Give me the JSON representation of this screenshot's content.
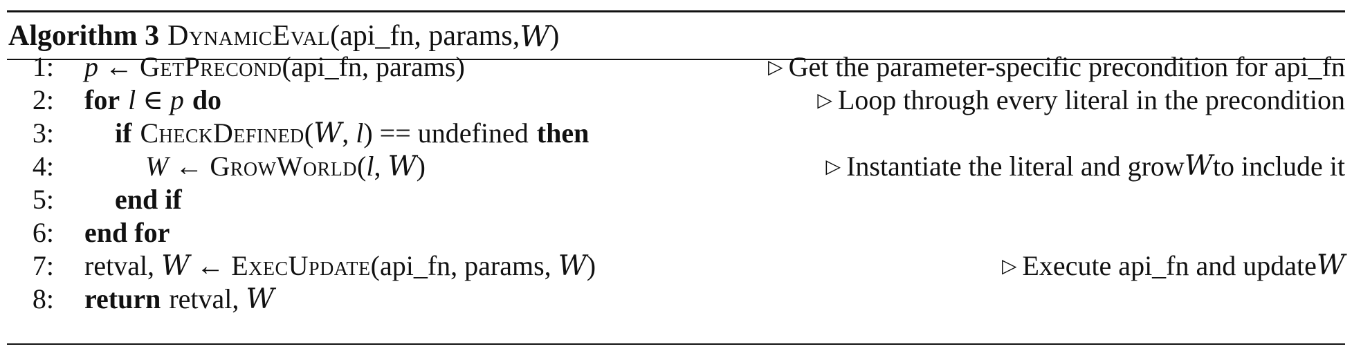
{
  "caption": {
    "label": "Algorithm 3",
    "name": "DynamicEval",
    "args_open": "(api_fn, params, ",
    "args_world": "W",
    "args_close": ")"
  },
  "lines": [
    {
      "num": "1:",
      "p": "p",
      "arrow": " ← ",
      "fn": "GetPrecond",
      "args": "(api_fn, params)",
      "comment": "Get the parameter-specific precondition for api_fn"
    },
    {
      "num": "2:",
      "kw_for": "for",
      "var": "l",
      "in": " ∈ ",
      "p": "p",
      "kw_do": "do",
      "comment": "Loop through every literal in the precondition"
    },
    {
      "num": "3:",
      "kw_if": "if",
      "fn": "CheckDefined",
      "open": "(",
      "world": "W",
      "comma": ", ",
      "var": "l",
      "rest": ") == undefined",
      "kw_then": "then"
    },
    {
      "num": "4:",
      "W": "W",
      "arrow": " ← ",
      "fn": "GrowWorld",
      "open": "(",
      "var": "l",
      "comma": ", ",
      "world": "W",
      "close": ")",
      "comment_pre": "Instantiate the literal and grow ",
      "comment_world": "W",
      "comment_post": " to include it"
    },
    {
      "num": "5:",
      "kw": "end if"
    },
    {
      "num": "6:",
      "kw": "end for"
    },
    {
      "num": "7:",
      "retval": "retval, ",
      "world": "W",
      "arrow": " ← ",
      "fn": "ExecUpdate",
      "args_open": "(api_fn, params, ",
      "args_world": "W",
      "args_close": ")",
      "comment_pre": "Execute api_fn and update ",
      "comment_world": "W"
    },
    {
      "num": "8:",
      "kw": "return",
      "retval": "retval, ",
      "world": "W"
    }
  ],
  "icons": {
    "comment_marker": "triangle-right-icon"
  }
}
